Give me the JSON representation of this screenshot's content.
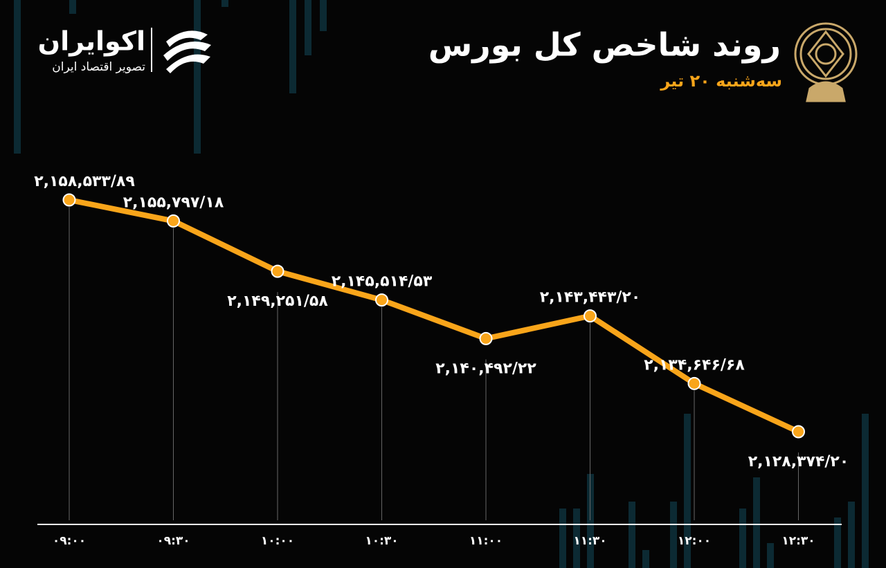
{
  "brand": {
    "name": "اکوایران",
    "tagline": "تصویر اقتصاد ایران"
  },
  "chart_data": {
    "type": "line",
    "title": "روند شاخص کل بورس",
    "subtitle": "سه‌شنبه ۲۰ تیر",
    "categories": [
      "۰۹:۰۰",
      "۰۹:۳۰",
      "۱۰:۰۰",
      "۱۰:۳۰",
      "۱۱:۰۰",
      "۱۱:۳۰",
      "۱۲:۰۰",
      "۱۲:۳۰"
    ],
    "series": [
      {
        "color": "#f9a51a",
        "values": [
          2158533.89,
          2155797.18,
          2149251.58,
          2145514.53,
          2140492.22,
          2143443.2,
          2134646.68,
          2128374.2
        ],
        "value_labels": [
          "۲,۱۵۸,۵۳۳/۸۹",
          "۲,۱۵۵,۷۹۷/۱۸",
          "۲,۱۴۹,۲۵۱/۵۸",
          "۲,۱۴۵,۵۱۴/۵۳",
          "۲,۱۴۰,۴۹۲/۲۲",
          "۲,۱۴۳,۴۴۳/۲۰",
          "۲,۱۳۴,۶۴۶/۶۸",
          "۲,۱۲۸,۳۷۴/۲۰"
        ]
      }
    ]
  }
}
